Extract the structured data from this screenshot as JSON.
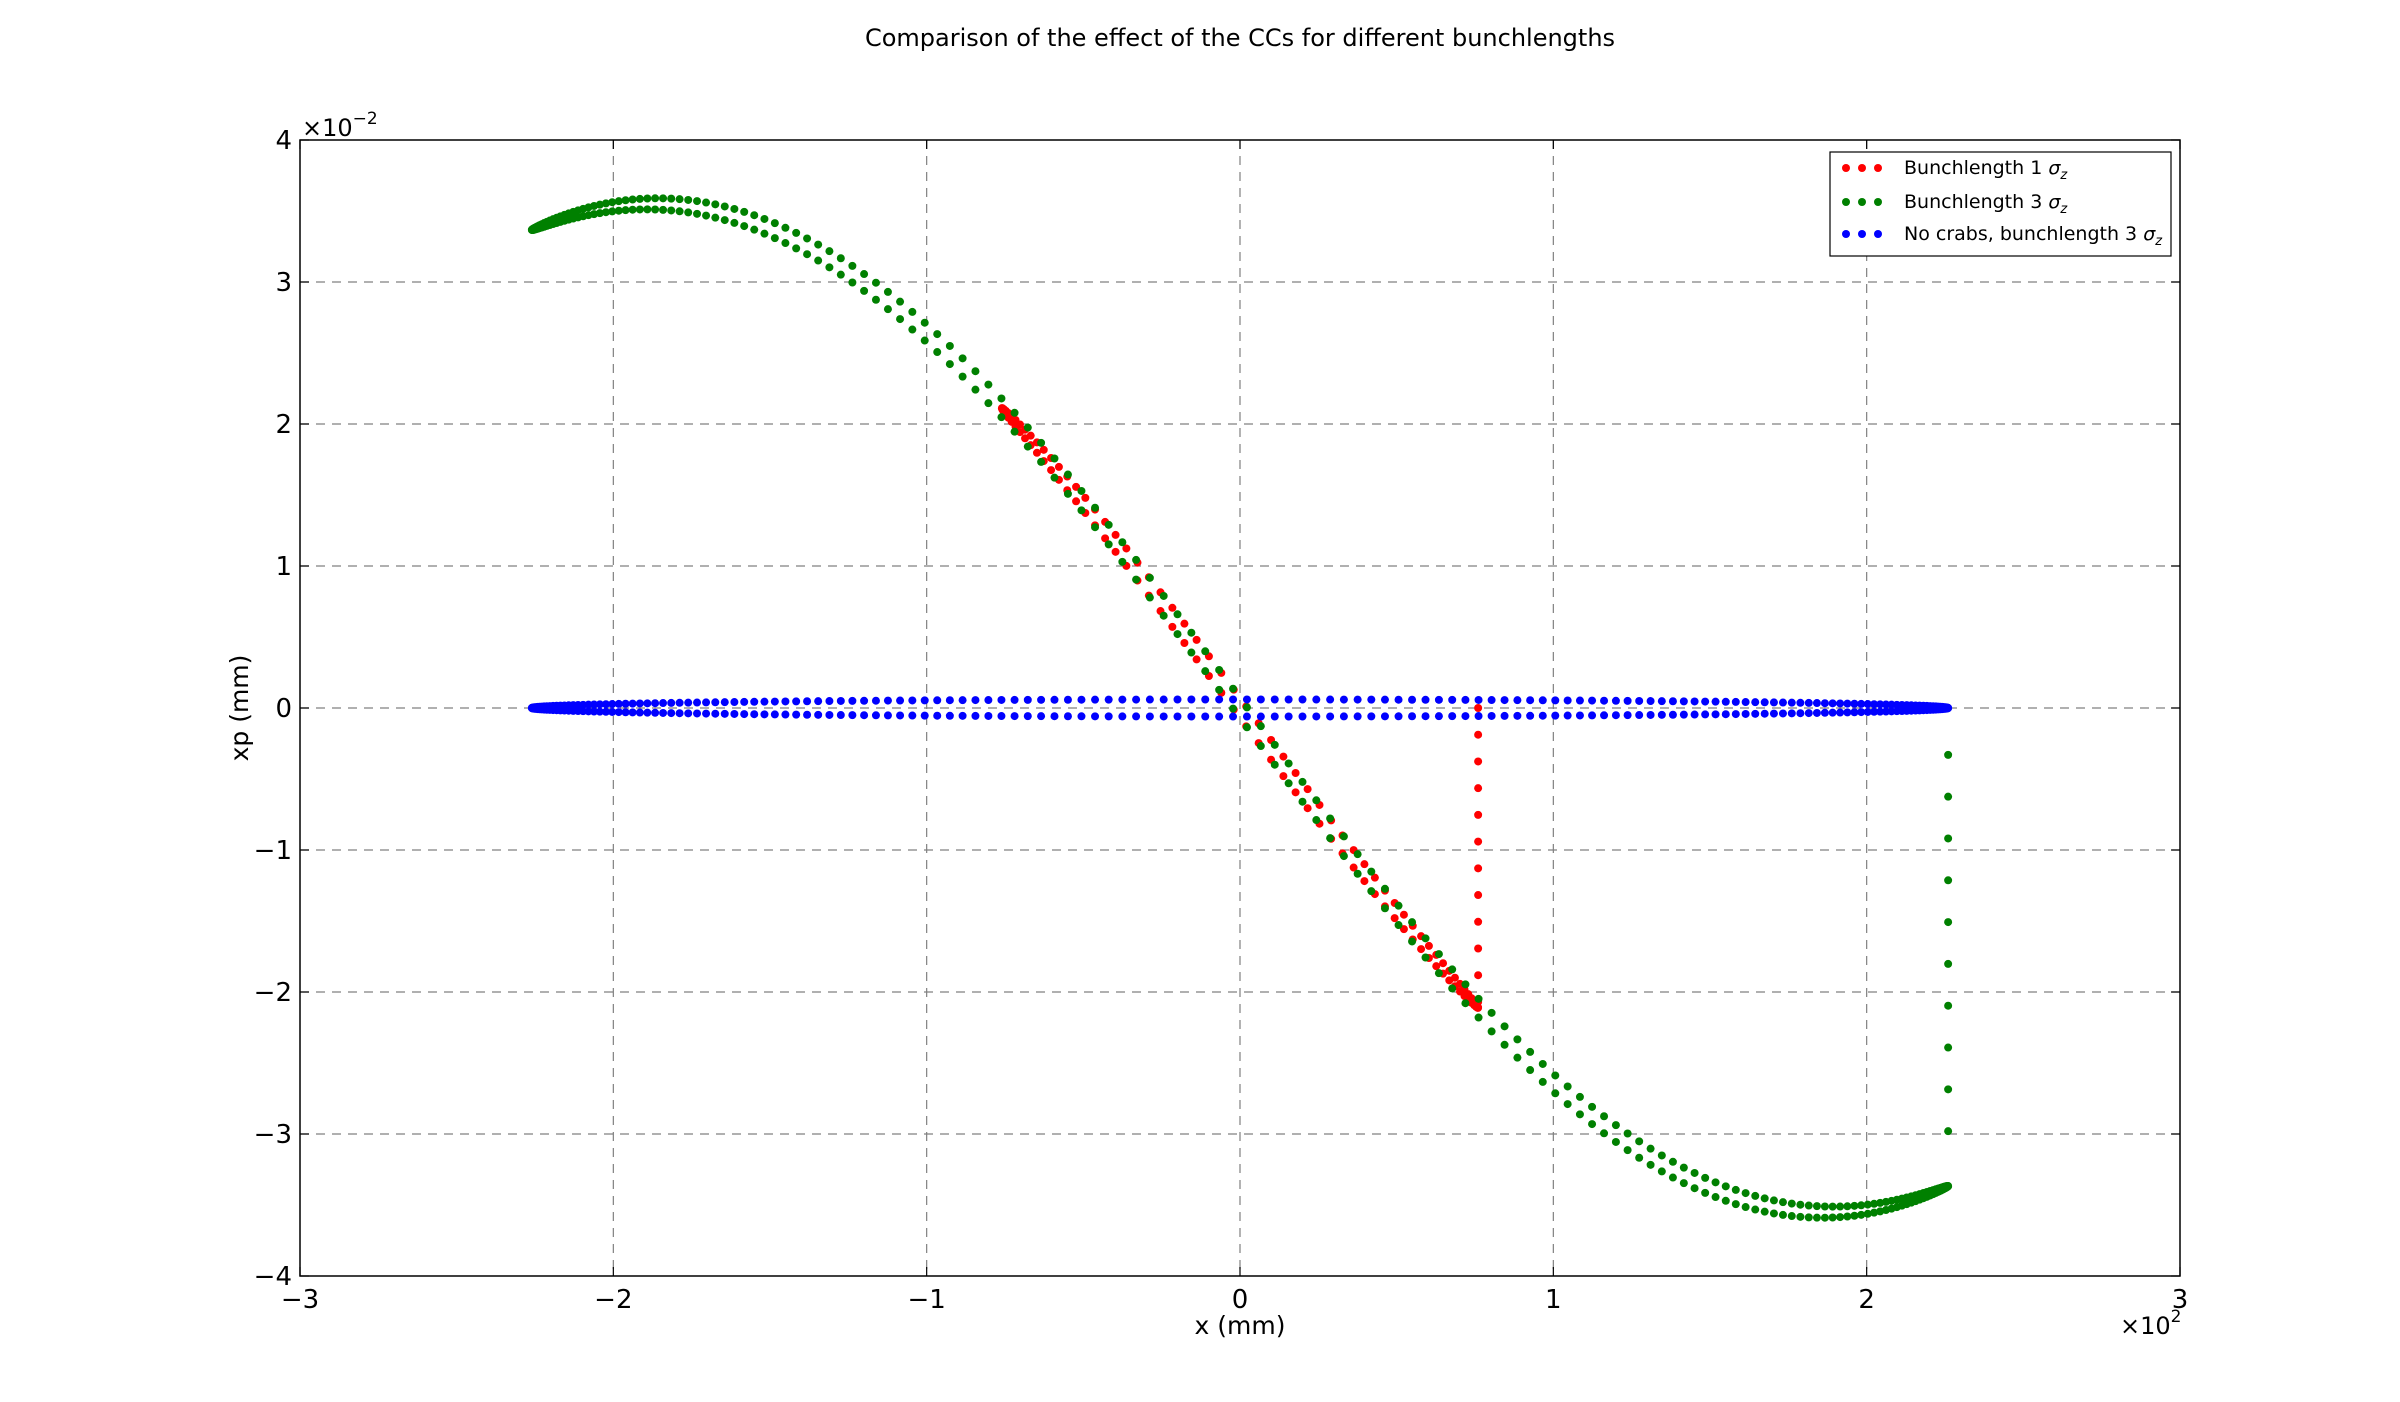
{
  "chart_data": {
    "type": "scatter",
    "title": "Comparison of the effect of the CCs for different bunchlengths",
    "xlabel": "x (mm)",
    "ylabel": "xp (mm)",
    "xlim": [
      -300,
      300
    ],
    "ylim": [
      -0.04,
      0.04
    ],
    "x_ticks": [
      -300,
      -200,
      -100,
      0,
      100,
      200,
      300
    ],
    "x_tick_labels": [
      "−3",
      "−2",
      "−1",
      "0",
      "1",
      "2",
      "3"
    ],
    "x_multiplier": {
      "base": "×10",
      "exponent": "2"
    },
    "y_ticks": [
      -0.04,
      -0.03,
      -0.02,
      -0.01,
      0,
      0.01,
      0.02,
      0.03,
      0.04
    ],
    "y_tick_labels": [
      "−4",
      "−3",
      "−2",
      "−1",
      "0",
      "1",
      "2",
      "3",
      "4"
    ],
    "y_multiplier": {
      "base": "×10",
      "exponent": "−2"
    },
    "grid": true,
    "legend_position": "top-right",
    "series": [
      {
        "name": "Bunchlength 1 σz",
        "legend": {
          "main": "Bunchlength 1 ",
          "sym": "σ",
          "sub": "z"
        },
        "color": "#ff0000",
        "model": {
          "type": "crab",
          "x_max": 76,
          "amplitude": 0.0355,
          "wavelength": 750,
          "split": 0.0007,
          "points_per_branch": 60,
          "vertical_segment": {
            "x": 76,
            "from": 0,
            "to": -0.0207,
            "count": 12
          }
        }
      },
      {
        "name": "Bunchlength 3 σz",
        "legend": {
          "main": "Bunchlength 3 ",
          "sym": "σ",
          "sub": "z"
        },
        "color": "#008000",
        "model": {
          "type": "crab",
          "x_max": 226,
          "amplitude": 0.0355,
          "wavelength": 750,
          "split": 0.0007,
          "points_per_branch": 160,
          "vertical_segment": {
            "x": 226,
            "from": -0.0033,
            "to": -0.0298,
            "count": 10
          }
        }
      },
      {
        "name": "No crabs, bunchlength 3 σz",
        "legend": {
          "main": "No crabs, bunchlength 3 ",
          "sym": "σ",
          "sub": "z"
        },
        "color": "#0000ff",
        "model": {
          "type": "ellipse",
          "x_max": 226,
          "y_half_width": 0.0006,
          "points_per_branch": 160
        }
      }
    ]
  }
}
